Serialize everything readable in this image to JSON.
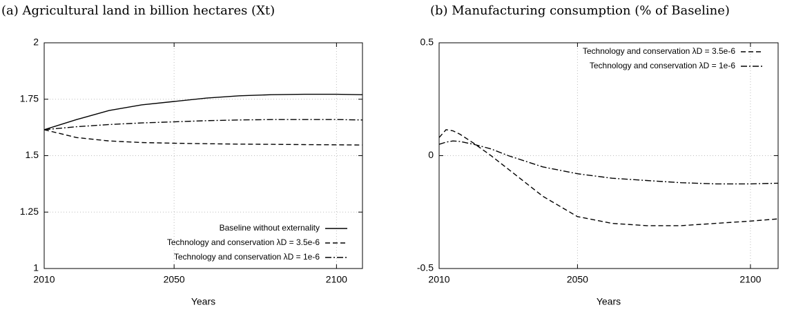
{
  "chart_data": [
    {
      "type": "line",
      "title": "(a) Agricultural land in billion hectares (Xt)",
      "xlabel": "Years",
      "x": [
        2010,
        2020,
        2030,
        2040,
        2050,
        2060,
        2070,
        2080,
        2090,
        2100,
        2108
      ],
      "xlim": [
        2010,
        2108
      ],
      "xticks": [
        2010,
        2050,
        2100
      ],
      "ylim": [
        1,
        2
      ],
      "yticks": [
        1,
        1.25,
        1.5,
        1.75,
        2
      ],
      "grid": true,
      "legend": "lower right",
      "series": [
        {
          "name": "Baseline without externality",
          "color": "#000000",
          "style": "solid",
          "values": [
            1.615,
            1.66,
            1.7,
            1.725,
            1.74,
            1.755,
            1.765,
            1.77,
            1.772,
            1.772,
            1.77
          ]
        },
        {
          "name": "Technology and conservation λD = 3.5e-6",
          "color": "#000000",
          "style": "dashed",
          "values": [
            1.615,
            1.58,
            1.565,
            1.558,
            1.555,
            1.553,
            1.551,
            1.55,
            1.549,
            1.548,
            1.547
          ]
        },
        {
          "name": "Technology and conservation λD = 1e-6",
          "color": "#000000",
          "style": "dashdot",
          "values": [
            1.615,
            1.628,
            1.638,
            1.645,
            1.65,
            1.655,
            1.658,
            1.66,
            1.66,
            1.66,
            1.658
          ]
        }
      ]
    },
    {
      "type": "line",
      "title": "(b) Manufacturing consumption (% of Baseline)",
      "xlabel": "Years",
      "x": [
        2010,
        2012,
        2014,
        2016,
        2020,
        2025,
        2030,
        2040,
        2050,
        2060,
        2070,
        2080,
        2090,
        2100,
        2108
      ],
      "xlim": [
        2010,
        2108
      ],
      "xticks": [
        2010,
        2050,
        2100
      ],
      "ylim": [
        -0.5,
        0.5
      ],
      "yticks": [
        -0.5,
        0,
        0.5
      ],
      "grid": true,
      "legend": "upper right",
      "series": [
        {
          "name": "Technology and conservation λD = 3.5e-6",
          "color": "#000000",
          "style": "dashed",
          "values": [
            0.08,
            0.115,
            0.11,
            0.095,
            0.055,
            0.0,
            -0.06,
            -0.18,
            -0.27,
            -0.3,
            -0.31,
            -0.31,
            -0.3,
            -0.29,
            -0.28
          ]
        },
        {
          "name": "Technology and conservation λD = 1e-6",
          "color": "#000000",
          "style": "dashdot",
          "values": [
            0.05,
            0.06,
            0.065,
            0.063,
            0.05,
            0.03,
            0.0,
            -0.05,
            -0.08,
            -0.1,
            -0.11,
            -0.12,
            -0.125,
            -0.125,
            -0.122
          ]
        }
      ]
    }
  ]
}
